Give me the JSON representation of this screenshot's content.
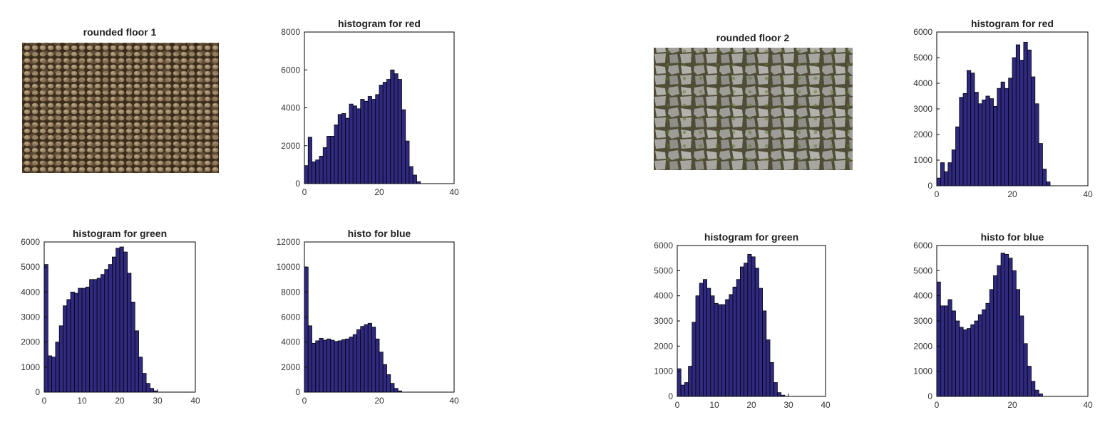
{
  "colors": {
    "bar_fill": "#2f2a80",
    "bar_edge": "#000000",
    "axes": "#000000",
    "background": "#ffffff"
  },
  "images": [
    {
      "title": "rounded floor 1",
      "texture": "small-cobblestone-photo",
      "palette": "brown"
    },
    {
      "title": "rounded floor 2",
      "texture": "large-flagstone-photo",
      "palette": "grey"
    }
  ],
  "chart_data": [
    {
      "type": "bar",
      "title": "histogram for red",
      "ylim": [
        0,
        8000
      ],
      "xlim": [
        0,
        40
      ],
      "xticks": [
        0,
        20,
        40
      ],
      "yticks": [
        0,
        2000,
        4000,
        6000,
        8000
      ],
      "bin_start": 0.5,
      "values": [
        950,
        2450,
        1150,
        1250,
        1450,
        1900,
        2500,
        2500,
        3100,
        3650,
        3700,
        3450,
        4200,
        4100,
        3950,
        4450,
        4350,
        4600,
        4450,
        4700,
        5200,
        5350,
        5500,
        6000,
        5800,
        5500,
        3900,
        2250,
        900,
        450,
        100,
        0,
        0,
        0,
        0,
        0,
        0,
        0,
        0,
        0
      ]
    },
    {
      "type": "bar",
      "title": "histogram for green",
      "ylim": [
        0,
        6000
      ],
      "xlim": [
        0,
        40
      ],
      "xticks": [
        0,
        10,
        20,
        30,
        40
      ],
      "yticks": [
        0,
        1000,
        2000,
        3000,
        4000,
        5000,
        6000
      ],
      "bin_start": 0.5,
      "values": [
        5100,
        1450,
        1400,
        2000,
        2650,
        3450,
        3700,
        4000,
        3950,
        4150,
        4150,
        4200,
        4500,
        4500,
        4550,
        4700,
        4900,
        5100,
        5400,
        5750,
        5800,
        5600,
        4750,
        3600,
        2450,
        1400,
        750,
        350,
        150,
        50,
        0,
        0,
        0,
        0,
        0,
        0,
        0,
        0,
        0,
        0
      ]
    },
    {
      "type": "bar",
      "title": "histo for blue",
      "ylim": [
        0,
        12000
      ],
      "xlim": [
        0,
        40
      ],
      "xticks": [
        0,
        20,
        40
      ],
      "yticks": [
        0,
        2000,
        4000,
        6000,
        8000,
        10000,
        12000
      ],
      "bin_start": 0.5,
      "values": [
        10000,
        5300,
        3900,
        4100,
        4300,
        4150,
        4250,
        4150,
        4050,
        4100,
        4200,
        4250,
        4400,
        4600,
        5000,
        5250,
        5400,
        5500,
        5200,
        4250,
        3200,
        2200,
        1400,
        700,
        300,
        100,
        0,
        0,
        0,
        0,
        0,
        0,
        0,
        0,
        0,
        0,
        0,
        0,
        0,
        0
      ]
    },
    {
      "type": "bar",
      "title": "histogram for red",
      "ylim": [
        0,
        6000
      ],
      "xlim": [
        0,
        40
      ],
      "xticks": [
        0,
        20,
        40
      ],
      "yticks": [
        0,
        1000,
        2000,
        3000,
        4000,
        5000,
        6000
      ],
      "bin_start": 0.5,
      "values": [
        300,
        900,
        550,
        900,
        1400,
        2300,
        3450,
        3600,
        4500,
        4400,
        3650,
        3200,
        3350,
        3500,
        3400,
        3100,
        3800,
        4050,
        3800,
        4200,
        5000,
        5500,
        4900,
        5600,
        5300,
        4250,
        3200,
        1650,
        650,
        150,
        0,
        0,
        0,
        0,
        0,
        0,
        0,
        0,
        0,
        0
      ]
    },
    {
      "type": "bar",
      "title": "histogram for green",
      "ylim": [
        0,
        6000
      ],
      "xlim": [
        0,
        40
      ],
      "xticks": [
        0,
        10,
        20,
        30,
        40
      ],
      "yticks": [
        0,
        1000,
        2000,
        3000,
        4000,
        5000,
        6000
      ],
      "bin_start": 0.5,
      "values": [
        1100,
        450,
        550,
        1200,
        2950,
        4000,
        4500,
        4650,
        4300,
        4000,
        3700,
        3650,
        3650,
        3850,
        4050,
        4350,
        4650,
        5150,
        5300,
        5650,
        5550,
        5100,
        4300,
        3400,
        2250,
        1350,
        550,
        150,
        50,
        0,
        0,
        0,
        0,
        0,
        0,
        0,
        0,
        0,
        0,
        0
      ]
    },
    {
      "type": "bar",
      "title": "histo for blue",
      "ylim": [
        0,
        6000
      ],
      "xlim": [
        0,
        40
      ],
      "xticks": [
        0,
        20,
        40
      ],
      "yticks": [
        0,
        1000,
        2000,
        3000,
        4000,
        5000,
        6000
      ],
      "bin_start": 0.5,
      "values": [
        4550,
        3600,
        3600,
        3850,
        3400,
        3000,
        2750,
        2650,
        2700,
        2850,
        3000,
        3250,
        3450,
        3700,
        4250,
        4800,
        5200,
        5700,
        5650,
        5500,
        5000,
        4250,
        3200,
        2100,
        1200,
        600,
        250,
        100,
        0,
        0,
        0,
        0,
        0,
        0,
        0,
        0,
        0,
        0,
        0,
        0
      ]
    }
  ]
}
